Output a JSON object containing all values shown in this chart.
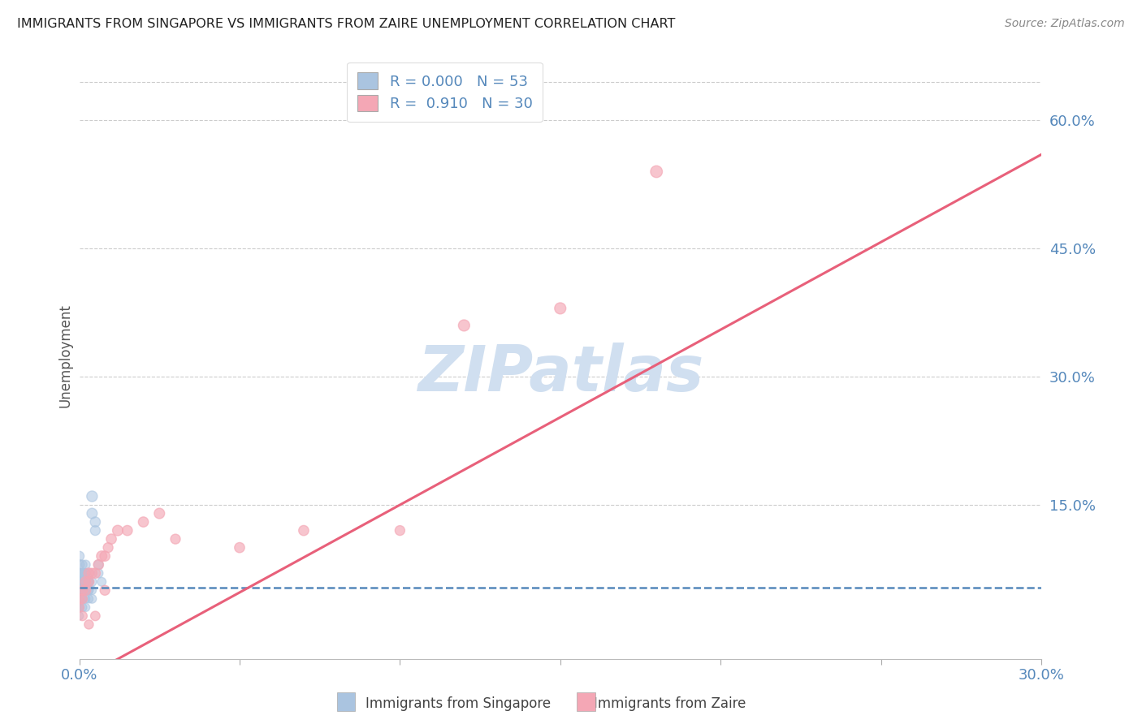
{
  "title": "IMMIGRANTS FROM SINGAPORE VS IMMIGRANTS FROM ZAIRE UNEMPLOYMENT CORRELATION CHART",
  "source": "Source: ZipAtlas.com",
  "ylabel": "Unemployment",
  "xlim": [
    0.0,
    0.3
  ],
  "ylim": [
    -0.03,
    0.68
  ],
  "xtick_pos": [
    0.0,
    0.05,
    0.1,
    0.15,
    0.2,
    0.25,
    0.3
  ],
  "xtick_labels": [
    "0.0%",
    "",
    "",
    "",
    "",
    "",
    "30.0%"
  ],
  "ytick_pos": [
    0.0,
    0.15,
    0.3,
    0.45,
    0.6
  ],
  "ytick_labels": [
    "",
    "15.0%",
    "30.0%",
    "45.0%",
    "60.0%"
  ],
  "legend_blue_label": "Immigrants from Singapore",
  "legend_pink_label": "Immigrants from Zaire",
  "blue_color": "#aac4e0",
  "pink_color": "#f4a7b5",
  "blue_line_color": "#5588bb",
  "pink_line_color": "#e8607a",
  "watermark_color": "#d0dff0",
  "grid_color": "#cccccc",
  "sing_x": [
    0.0,
    0.0,
    0.0,
    0.0,
    0.0,
    0.0,
    0.0,
    0.0,
    0.0,
    0.0,
    0.001,
    0.001,
    0.001,
    0.001,
    0.001,
    0.001,
    0.001,
    0.002,
    0.002,
    0.002,
    0.002,
    0.002,
    0.003,
    0.003,
    0.003,
    0.003,
    0.004,
    0.004,
    0.004,
    0.0,
    0.0,
    0.0,
    0.0,
    0.0,
    0.0,
    0.0,
    0.0,
    0.001,
    0.001,
    0.001,
    0.001,
    0.002,
    0.002,
    0.002,
    0.003,
    0.003,
    0.004,
    0.004,
    0.005,
    0.005,
    0.006,
    0.006,
    0.007
  ],
  "sing_y": [
    0.05,
    0.04,
    0.06,
    0.03,
    0.07,
    0.05,
    0.04,
    0.03,
    0.06,
    0.05,
    0.04,
    0.06,
    0.05,
    0.07,
    0.04,
    0.03,
    0.05,
    0.05,
    0.06,
    0.04,
    0.07,
    0.03,
    0.05,
    0.04,
    0.06,
    0.05,
    0.04,
    0.06,
    0.05,
    0.08,
    0.09,
    0.07,
    0.06,
    0.05,
    0.04,
    0.03,
    0.02,
    0.08,
    0.07,
    0.06,
    0.05,
    0.08,
    0.07,
    0.06,
    0.07,
    0.06,
    0.16,
    0.14,
    0.13,
    0.12,
    0.08,
    0.07,
    0.06
  ],
  "sing_sizes": [
    70,
    60,
    65,
    55,
    70,
    65,
    60,
    55,
    60,
    65,
    60,
    65,
    55,
    60,
    55,
    60,
    55,
    65,
    60,
    55,
    65,
    55,
    60,
    55,
    60,
    55,
    60,
    65,
    55,
    80,
    75,
    70,
    65,
    60,
    65,
    60,
    55,
    65,
    60,
    55,
    60,
    65,
    60,
    55,
    65,
    60,
    90,
    85,
    80,
    75,
    70,
    65,
    60
  ],
  "zaire_x": [
    0.0,
    0.0,
    0.001,
    0.001,
    0.002,
    0.002,
    0.003,
    0.003,
    0.004,
    0.005,
    0.006,
    0.007,
    0.008,
    0.009,
    0.01,
    0.012,
    0.015,
    0.02,
    0.025,
    0.03,
    0.05,
    0.07,
    0.1,
    0.12,
    0.15,
    0.001,
    0.003,
    0.005,
    0.008,
    0.18
  ],
  "zaire_y": [
    0.04,
    0.03,
    0.05,
    0.04,
    0.06,
    0.05,
    0.07,
    0.06,
    0.07,
    0.07,
    0.08,
    0.09,
    0.09,
    0.1,
    0.11,
    0.12,
    0.12,
    0.13,
    0.14,
    0.11,
    0.1,
    0.12,
    0.12,
    0.36,
    0.38,
    0.02,
    0.01,
    0.02,
    0.05,
    0.54
  ],
  "zaire_sizes": [
    80,
    70,
    80,
    75,
    85,
    80,
    85,
    80,
    75,
    80,
    80,
    85,
    80,
    75,
    80,
    85,
    80,
    80,
    85,
    75,
    80,
    80,
    75,
    100,
    100,
    70,
    65,
    70,
    75,
    110
  ],
  "blue_line_y_flat": 0.053,
  "pink_line_slope": 2.05,
  "pink_line_intercept": -0.055
}
